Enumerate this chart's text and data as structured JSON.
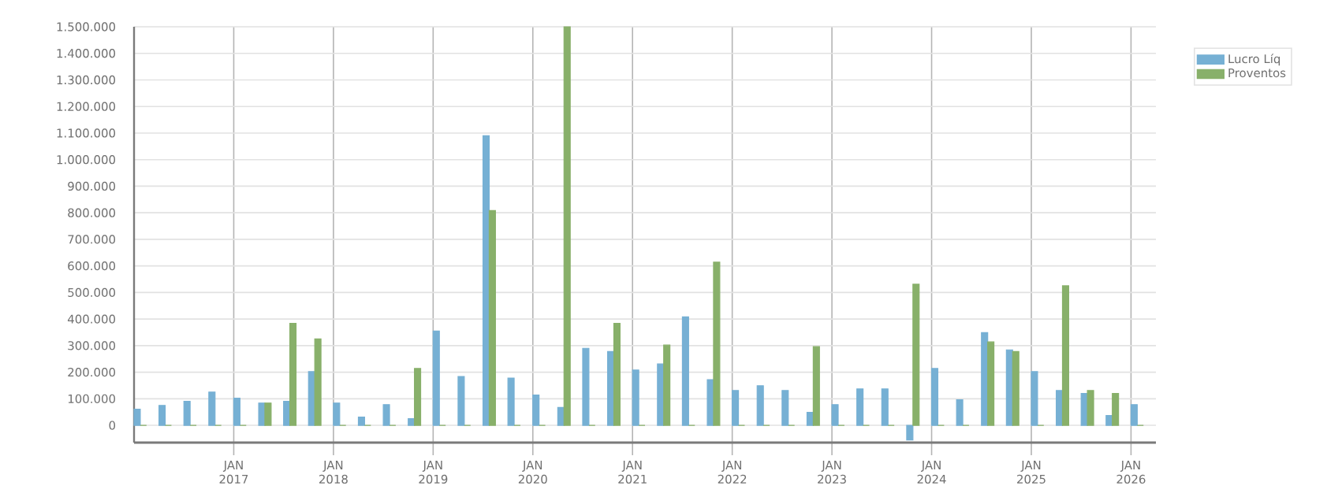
{
  "chart_data": {
    "type": "bar",
    "x": [
      "2016-01",
      "2016-04",
      "2016-07",
      "2016-10",
      "2017-01",
      "2017-04",
      "2017-07",
      "2017-10",
      "2018-01",
      "2018-04",
      "2018-07",
      "2018-10",
      "2019-01",
      "2019-04",
      "2019-07",
      "2019-10",
      "2020-01",
      "2020-04",
      "2020-07",
      "2020-10",
      "2021-01",
      "2021-04",
      "2021-07",
      "2021-10",
      "2022-01",
      "2022-04",
      "2022-07",
      "2022-10",
      "2023-01",
      "2023-04",
      "2023-07",
      "2023-10",
      "2024-01",
      "2024-04",
      "2024-07",
      "2024-10",
      "2025-01",
      "2025-04",
      "2025-07",
      "2025-10",
      "2026-01"
    ],
    "series": [
      {
        "name": "Lucro Líq",
        "color": "#76b0d4",
        "values": [
          61000,
          75000,
          90000,
          125000,
          102000,
          84000,
          90000,
          202000,
          84000,
          31000,
          78000,
          25000,
          355000,
          184000,
          1090000,
          178000,
          114000,
          67000,
          290000,
          278000,
          208000,
          231000,
          408000,
          172000,
          131000,
          149000,
          131000,
          49000,
          78000,
          137000,
          137000,
          -55000,
          214000,
          96000,
          349000,
          284000,
          202000,
          131000,
          120000,
          37000,
          78000
        ]
      },
      {
        "name": "Proventos",
        "color": "#88b06a",
        "values": [
          0,
          0,
          0,
          0,
          0,
          84000,
          384000,
          325000,
          0,
          0,
          0,
          214000,
          0,
          0,
          808000,
          0,
          0,
          1500000,
          0,
          384000,
          0,
          302000,
          0,
          614000,
          0,
          0,
          0,
          296000,
          0,
          0,
          0,
          531000,
          0,
          0,
          314000,
          278000,
          0,
          525000,
          131000,
          120000,
          0
        ]
      }
    ],
    "xlim": [
      "2016-01",
      "2026-04"
    ],
    "xticks": [
      {
        "value": "2017-01",
        "label": "JAN 2017"
      },
      {
        "value": "2018-01",
        "label": "JAN 2018"
      },
      {
        "value": "2019-01",
        "label": "JAN 2019"
      },
      {
        "value": "2020-01",
        "label": "JAN 2020"
      },
      {
        "value": "2021-01",
        "label": "JAN 2021"
      },
      {
        "value": "2022-01",
        "label": "JAN 2022"
      },
      {
        "value": "2023-01",
        "label": "JAN 2023"
      },
      {
        "value": "2024-01",
        "label": "JAN 2024"
      },
      {
        "value": "2025-01",
        "label": "JAN 2025"
      },
      {
        "value": "2026-01",
        "label": "JAN 2026"
      }
    ],
    "ylim": [
      -65000,
      1500000
    ],
    "yticks": [
      0,
      {
        "value": 100000,
        "label": "100.000"
      },
      {
        "value": 200000,
        "label": "200.000"
      },
      {
        "value": 300000,
        "label": "300.000"
      },
      {
        "value": 400000,
        "label": "400.000"
      },
      {
        "value": 500000,
        "label": "500.000"
      },
      {
        "value": 600000,
        "label": "600.000"
      },
      {
        "value": 700000,
        "label": "700.000"
      },
      {
        "value": 800000,
        "label": "800.000"
      },
      {
        "value": 900000,
        "label": "900.000"
      },
      {
        "value": 1000000,
        "label": "1.000.000"
      },
      {
        "value": 1100000,
        "label": "1.100.000"
      },
      {
        "value": 1200000,
        "label": "1.200.000"
      },
      {
        "value": 1300000,
        "label": "1.300.000"
      },
      {
        "value": 1400000,
        "label": "1.400.000"
      },
      {
        "value": 1500000,
        "label": "1.500.000"
      }
    ],
    "grid": true,
    "legend": "top right"
  }
}
